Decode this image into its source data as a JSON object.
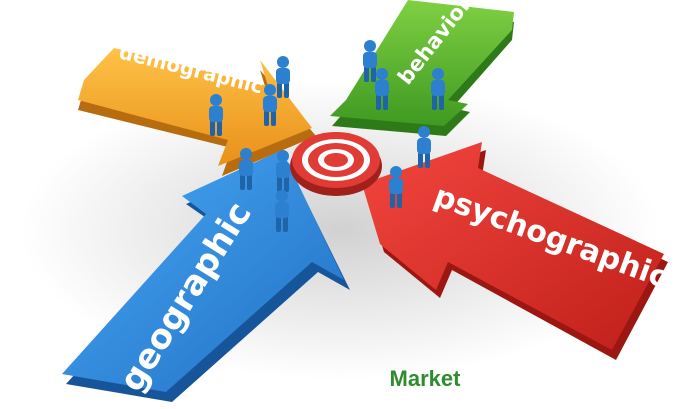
{
  "arrows": {
    "demographic": {
      "label": "demographic",
      "color": "#f6a623"
    },
    "behavioral": {
      "label": "behavioral",
      "color": "#5bb52f"
    },
    "geographic": {
      "label": "geographic",
      "color": "#2b8be0"
    },
    "psychographic": {
      "label": "psychographic",
      "color": "#e0312b"
    }
  },
  "target": {
    "color": "#e03b34"
  },
  "people": {
    "color": "#2d7fd0"
  },
  "caption": "Market"
}
